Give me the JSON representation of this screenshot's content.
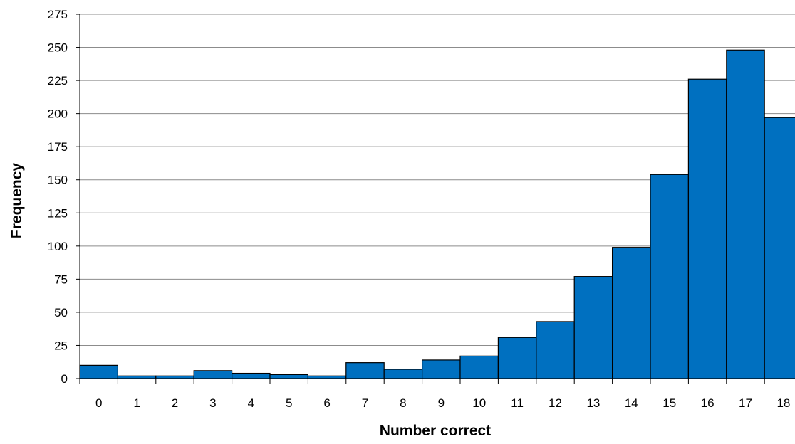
{
  "chart_data": {
    "type": "bar",
    "title": "",
    "xlabel": "Number correct",
    "ylabel": "Frequency",
    "categories": [
      "0",
      "1",
      "2",
      "3",
      "4",
      "5",
      "6",
      "7",
      "8",
      "9",
      "10",
      "11",
      "12",
      "13",
      "14",
      "15",
      "16",
      "17",
      "18"
    ],
    "values": [
      10,
      2,
      2,
      6,
      4,
      3,
      2,
      12,
      7,
      14,
      17,
      31,
      43,
      77,
      99,
      154,
      226,
      248,
      197
    ],
    "ylim": [
      0,
      275
    ],
    "yticks": [
      "0",
      "25",
      "50",
      "75",
      "100",
      "125",
      "150",
      "175",
      "200",
      "225",
      "250",
      "275"
    ],
    "grid": true,
    "legend": "none",
    "bar_color": "#0070C0"
  }
}
